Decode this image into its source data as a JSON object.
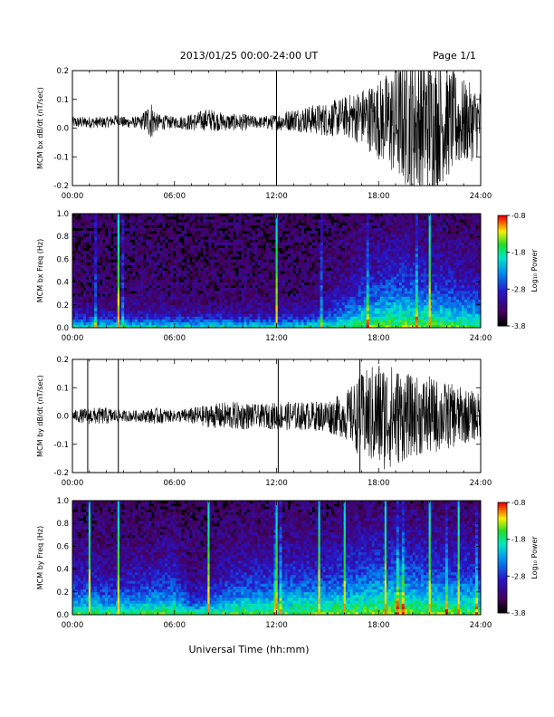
{
  "header": {
    "title": "2013/01/25  00:00-24:00 UT",
    "page": "Page 1/1"
  },
  "footer": {
    "xlabel": "Universal Time (hh:mm)"
  },
  "chart_data": [
    {
      "type": "line",
      "ylabel": "MCM bx dB/dt (nT/sec)",
      "xlabel": "",
      "x_ticks": [
        "00:00",
        "06:00",
        "12:00",
        "18:00",
        "24:00"
      ],
      "xlim": [
        0,
        24
      ],
      "ylim": [
        -0.2,
        0.2
      ],
      "y_ticks": [
        "0.2",
        "0.1",
        "0.0",
        "-0.1",
        "-0.2"
      ],
      "series": [
        {
          "values": [
            [
              0,
              0.02
            ],
            [
              1,
              0.02
            ],
            [
              2,
              0.02
            ],
            [
              2.7,
              0.03
            ],
            [
              3,
              0.02
            ],
            [
              4,
              0.02
            ],
            [
              4.6,
              0.03
            ],
            [
              5,
              0.02
            ],
            [
              6,
              0.02
            ],
            [
              7,
              0.02
            ],
            [
              8,
              0.03
            ],
            [
              9,
              0.02
            ],
            [
              10,
              0.02
            ],
            [
              11,
              0.02
            ],
            [
              12,
              0.02
            ],
            [
              13,
              0.03
            ],
            [
              14,
              0.03
            ],
            [
              15,
              0.03
            ],
            [
              16,
              0.04
            ],
            [
              17,
              0.04
            ],
            [
              18,
              0.03
            ],
            [
              19,
              0.02
            ],
            [
              20,
              0.02
            ],
            [
              21,
              0.02
            ],
            [
              22,
              0.02
            ],
            [
              23,
              0.02
            ],
            [
              24,
              0.02
            ]
          ],
          "envelope": [
            [
              0,
              0.02
            ],
            [
              1,
              0.02
            ],
            [
              2,
              0.02
            ],
            [
              3,
              0.02
            ],
            [
              4,
              0.02
            ],
            [
              4.6,
              0.07
            ],
            [
              5,
              0.03
            ],
            [
              6,
              0.02
            ],
            [
              7,
              0.03
            ],
            [
              8,
              0.04
            ],
            [
              9,
              0.03
            ],
            [
              10,
              0.03
            ],
            [
              11,
              0.02
            ],
            [
              12,
              0.03
            ],
            [
              13,
              0.04
            ],
            [
              14,
              0.05
            ],
            [
              15,
              0.06
            ],
            [
              16,
              0.07
            ],
            [
              17,
              0.1
            ],
            [
              18,
              0.14
            ],
            [
              19,
              0.2
            ],
            [
              20,
              0.25
            ],
            [
              21,
              0.25
            ],
            [
              22,
              0.2
            ],
            [
              23,
              0.15
            ],
            [
              24,
              0.12
            ]
          ],
          "spikes": [
            2.7,
            12.0
          ]
        }
      ]
    },
    {
      "type": "heatmap",
      "ylabel": "MCM bx Freq (Hz)",
      "xlabel": "",
      "x_ticks": [
        "00:00",
        "06:00",
        "12:00",
        "18:00",
        "24:00"
      ],
      "xlim": [
        0,
        24
      ],
      "ylim": [
        0.0,
        1.0
      ],
      "y_ticks": [
        "1.0",
        "0.8",
        "0.6",
        "0.4",
        "0.2",
        "0.0"
      ],
      "colorbar": {
        "label": "Log₁₀ Power",
        "ticks": [
          "-0.8",
          "-1.8",
          "-2.8",
          "-3.8"
        ],
        "range": [
          -3.8,
          -0.8
        ]
      },
      "activity": [
        [
          0,
          0.12
        ],
        [
          1,
          0.1
        ],
        [
          2,
          0.1
        ],
        [
          3,
          0.1
        ],
        [
          4,
          0.12
        ],
        [
          5,
          0.12
        ],
        [
          6,
          0.1
        ],
        [
          7,
          0.05
        ],
        [
          8,
          0.05
        ],
        [
          9,
          0.1
        ],
        [
          10,
          0.12
        ],
        [
          11,
          0.1
        ],
        [
          12,
          0.1
        ],
        [
          13,
          0.12
        ],
        [
          14,
          0.15
        ],
        [
          15,
          0.2
        ],
        [
          16,
          0.3
        ],
        [
          17,
          0.4
        ],
        [
          18,
          0.5
        ],
        [
          19,
          0.55
        ],
        [
          20,
          0.55
        ],
        [
          21,
          0.5
        ],
        [
          22,
          0.45
        ],
        [
          23,
          0.4
        ],
        [
          24,
          0.35
        ]
      ],
      "vertical_lines": [
        2.7,
        12.0,
        21.0
      ]
    },
    {
      "type": "line",
      "ylabel": "MCM by dB/dt (nT/sec)",
      "xlabel": "",
      "x_ticks": [
        "00:00",
        "06:00",
        "12:00",
        "18:00",
        "24:00"
      ],
      "xlim": [
        0,
        24
      ],
      "ylim": [
        -0.2,
        0.2
      ],
      "y_ticks": [
        "0.2",
        "0.1",
        "0.0",
        "-0.1",
        "-0.2"
      ],
      "series": [
        {
          "values": [
            [
              0,
              0.0
            ],
            [
              2,
              0.0
            ],
            [
              4,
              0.0
            ],
            [
              6,
              0.0
            ],
            [
              8,
              0.0
            ],
            [
              10,
              0.0
            ],
            [
              12,
              0.0
            ],
            [
              14,
              0.0
            ],
            [
              16,
              0.0
            ],
            [
              18,
              0.0
            ],
            [
              20,
              0.0
            ],
            [
              22,
              0.0
            ],
            [
              24,
              0.0
            ]
          ],
          "envelope": [
            [
              0,
              0.02
            ],
            [
              1,
              0.03
            ],
            [
              2,
              0.03
            ],
            [
              3,
              0.02
            ],
            [
              4,
              0.02
            ],
            [
              5,
              0.03
            ],
            [
              6,
              0.02
            ],
            [
              7,
              0.03
            ],
            [
              8,
              0.04
            ],
            [
              9,
              0.05
            ],
            [
              10,
              0.05
            ],
            [
              11,
              0.04
            ],
            [
              12,
              0.05
            ],
            [
              13,
              0.05
            ],
            [
              14,
              0.05
            ],
            [
              15,
              0.06
            ],
            [
              16,
              0.08
            ],
            [
              17,
              0.15
            ],
            [
              18,
              0.2
            ],
            [
              19,
              0.18
            ],
            [
              20,
              0.14
            ],
            [
              21,
              0.14
            ],
            [
              22,
              0.12
            ],
            [
              23,
              0.1
            ],
            [
              24,
              0.08
            ]
          ],
          "spikes": [
            0.9,
            2.7,
            12.1,
            16.9
          ]
        }
      ]
    },
    {
      "type": "heatmap",
      "ylabel": "MCM by Freq (Hz)",
      "xlabel": "",
      "x_ticks": [
        "00:00",
        "06:00",
        "12:00",
        "18:00",
        "24:00"
      ],
      "xlim": [
        0,
        24
      ],
      "ylim": [
        0.0,
        1.0
      ],
      "y_ticks": [
        "1.0",
        "0.8",
        "0.6",
        "0.4",
        "0.2",
        "0.0"
      ],
      "colorbar": {
        "label": "Log₁₀ Power",
        "ticks": [
          "-0.8",
          "-1.8",
          "-2.8",
          "-3.8"
        ],
        "range": [
          -3.8,
          -0.8
        ]
      },
      "activity": [
        [
          0,
          0.35
        ],
        [
          1,
          0.35
        ],
        [
          2,
          0.3
        ],
        [
          3,
          0.3
        ],
        [
          4,
          0.35
        ],
        [
          5,
          0.35
        ],
        [
          6,
          0.4
        ],
        [
          7,
          0.2
        ],
        [
          8,
          0.25
        ],
        [
          9,
          0.35
        ],
        [
          10,
          0.4
        ],
        [
          11,
          0.4
        ],
        [
          12,
          0.4
        ],
        [
          13,
          0.45
        ],
        [
          14,
          0.45
        ],
        [
          15,
          0.45
        ],
        [
          16,
          0.5
        ],
        [
          17,
          0.55
        ],
        [
          18,
          0.6
        ],
        [
          19,
          0.6
        ],
        [
          20,
          0.55
        ],
        [
          21,
          0.55
        ],
        [
          22,
          0.5
        ],
        [
          23,
          0.5
        ],
        [
          24,
          0.45
        ]
      ],
      "vertical_lines": [
        1.0,
        2.7,
        8.0,
        12.0,
        14.5,
        16.0,
        18.4,
        21.0,
        22.7
      ]
    }
  ]
}
